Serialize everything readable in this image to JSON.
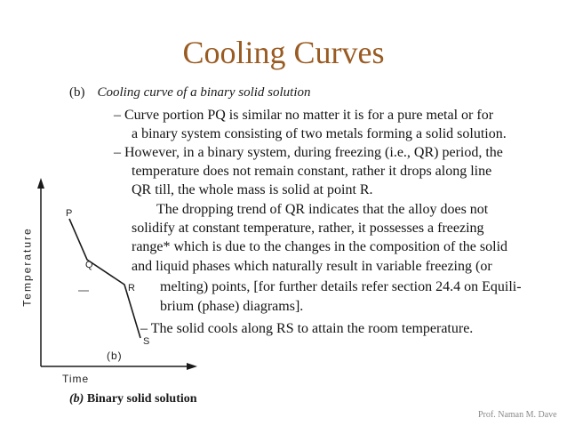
{
  "title": "Cooling Curves",
  "heading": {
    "marker": "(b)",
    "text": "Cooling curve of a binary solid solution"
  },
  "body_lines": [
    "– Curve portion PQ is similar no matter it is for a pure metal or for",
    "a binary system consisting of two metals forming a solid solution.",
    "– However, in a binary system, during freezing (i.e., QR) period, the",
    "temperature does not remain constant, rather it drops along line",
    "QR till, the whole mass is solid at point R.",
    "The dropping trend of QR indicates that the alloy does not",
    "solidify at constant temperature, rather, it possesses a freezing",
    "range* which is due to the changes in the composition of the solid",
    "and liquid phases which naturally result in variable freezing (or",
    "melting) points, [for further details refer section 24.4 on Equili-",
    "brium (phase) diagrams].",
    "– The solid cools along RS to attain the room temperature."
  ],
  "diagram": {
    "y_axis_label": "Temperature",
    "x_axis_label": "Time",
    "points": [
      "P",
      "Q",
      "R",
      "S"
    ],
    "panel_label": "(b)",
    "caption_marker": "(b)",
    "caption_text": "Binary solid solution"
  },
  "footer": "Prof. Naman M. Dave"
}
